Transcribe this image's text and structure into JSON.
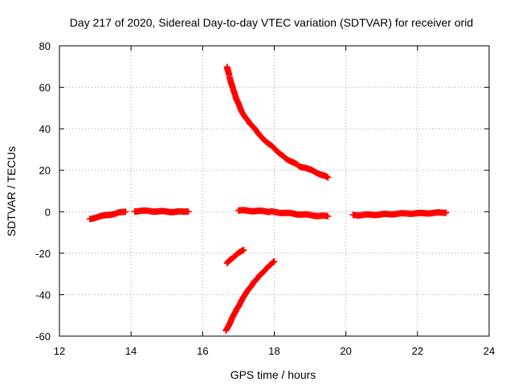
{
  "chart_data": {
    "type": "scatter",
    "title": "Day 217 of 2020, Sidereal Day-to-day VTEC variation (SDTVAR) for receiver orid",
    "xlabel": "GPS time / hours",
    "ylabel": "SDTVAR / TECUs",
    "xlim": [
      12,
      24
    ],
    "ylim": [
      -60,
      80
    ],
    "x_ticks": [
      "12",
      "14",
      "16",
      "18",
      "20",
      "22",
      "24"
    ],
    "y_ticks": [
      "-60",
      "-40",
      "-20",
      "0",
      "20",
      "40",
      "60",
      "80"
    ],
    "grid": true,
    "marker": "plus",
    "color": "#ff0000",
    "series": [
      {
        "x": [
          12.85,
          12.95,
          13.05,
          13.15,
          13.25,
          13.35,
          13.45,
          13.55,
          13.65,
          13.75,
          13.85
        ],
        "y": [
          -3.5,
          -3.0,
          -2.6,
          -2.2,
          -1.9,
          -1.6,
          -1.2,
          -0.9,
          -0.5,
          -0.3,
          0.0
        ]
      },
      {
        "x": [
          14.1,
          14.3,
          14.5,
          14.7,
          14.9,
          15.1,
          15.3,
          15.5,
          15.6
        ],
        "y": [
          0.3,
          0.4,
          0.3,
          0.2,
          0.1,
          0.0,
          0.0,
          -0.1,
          0.0
        ]
      },
      {
        "x": [
          16.68,
          16.75,
          16.85,
          16.95,
          17.1,
          17.3,
          17.5,
          17.7,
          17.9,
          18.1,
          18.3,
          18.5,
          18.7,
          18.9,
          19.1,
          19.3,
          19.5
        ],
        "y": [
          70,
          65,
          59,
          54,
          48,
          43,
          39,
          35,
          32,
          29,
          26,
          24,
          22,
          21,
          19.5,
          18,
          16.5
        ]
      },
      {
        "x": [
          17.0,
          17.3,
          17.6,
          17.9,
          18.1,
          18.3,
          18.5,
          18.7,
          18.9,
          19.1,
          19.3,
          19.5
        ],
        "y": [
          0.6,
          0.5,
          0.3,
          0.0,
          -0.3,
          -0.6,
          -0.9,
          -1.2,
          -1.5,
          -1.8,
          -2.0,
          -2.2
        ]
      },
      {
        "x": [
          16.68,
          16.75,
          16.85,
          16.95,
          17.05,
          17.15
        ],
        "y": [
          -25,
          -23.5,
          -22,
          -20.5,
          -19.5,
          -18.5
        ]
      },
      {
        "x": [
          16.65,
          16.75,
          16.85,
          16.95,
          17.05,
          17.15,
          17.3,
          17.45,
          17.6,
          17.75,
          17.9,
          18.0
        ],
        "y": [
          -57.5,
          -54,
          -50.5,
          -47,
          -44,
          -41,
          -37,
          -33.5,
          -30.5,
          -28,
          -25.5,
          -24
        ]
      },
      {
        "x": [
          20.2,
          20.4,
          20.6,
          20.8,
          21.0,
          21.2,
          21.4,
          21.6,
          21.8,
          22.0,
          22.2,
          22.4,
          22.6,
          22.8
        ],
        "y": [
          -1.5,
          -1.6,
          -1.5,
          -1.4,
          -1.3,
          -1.2,
          -1.0,
          -0.9,
          -0.8,
          -0.8,
          -0.7,
          -0.6,
          -0.5,
          -0.4
        ]
      }
    ]
  }
}
